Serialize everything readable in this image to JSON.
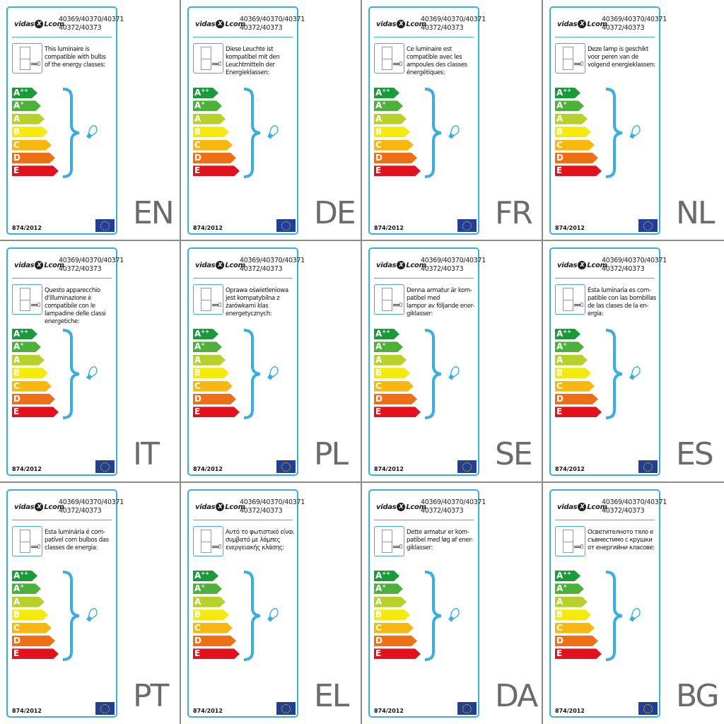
{
  "brand": {
    "logo_text_left": "vidaXL",
    "logo_text_right": ".com"
  },
  "product_codes": [
    "40369/40370/40371",
    "40372/40373"
  ],
  "regulation": "874/2012",
  "energy_classes": [
    {
      "label": "A",
      "sup": "++",
      "color": "#1a9a3a"
    },
    {
      "label": "A",
      "sup": "+",
      "color": "#4db03b"
    },
    {
      "label": "A",
      "sup": "",
      "color": "#b8d12a"
    },
    {
      "label": "B",
      "sup": "",
      "color": "#f5e90e"
    },
    {
      "label": "C",
      "sup": "",
      "color": "#f9b80f"
    },
    {
      "label": "D",
      "sup": "",
      "color": "#ef6f14"
    },
    {
      "label": "E",
      "sup": "",
      "color": "#e3101d"
    }
  ],
  "accent_color": "#3aaee3",
  "labels": [
    {
      "lang": "EN",
      "text": "This luminaire is\ncompatible with bulbs\nof the energy classes:"
    },
    {
      "lang": "DE",
      "text": "Diese Leuchte ist\nkompatibel mit den\nLeuchtmitteln der\nEnergieklassen:"
    },
    {
      "lang": "FR",
      "text": "Ce luminaire est\ncompatible avec les\nampoules des classes\nénergétiques:"
    },
    {
      "lang": "NL",
      "text": "Deze lamp is geschikt\nvoor peren van de\nvolgend energieklassen:"
    },
    {
      "lang": "IT",
      "text": "Questo apparecchio\nd'illuminazione è\ncompatibile con le\nlampadine delle classi\nenergetiche:"
    },
    {
      "lang": "PL",
      "text": "Oprawa oświetleniowa\njest kompatybilna z\nżarówkami klas\nenergetycznych:"
    },
    {
      "lang": "SE",
      "text": "Denna armatur är kom-\npatibel med\nlampor av följande ener-\ngiklasser:"
    },
    {
      "lang": "ES",
      "text": "Esta luminaria es com-\npatible con las bombillas\nde las clases de la en-\nergía:"
    },
    {
      "lang": "PT",
      "text": "Esta luminária é com-\npatível com bulbos das\nclasses de energia:"
    },
    {
      "lang": "EL",
      "text": "Αυτό το φωτιστικό είναι\nσυμβατό με λάμπες\nενεργειακής κλάσης:"
    },
    {
      "lang": "DA",
      "text": "Dette armatur er kom-\npatibel med løg af ener-\ngiklasser:"
    },
    {
      "lang": "BG",
      "text": "Осветителното тяло е\nсъвместимо с крушки\nот енергийни класове:"
    }
  ]
}
